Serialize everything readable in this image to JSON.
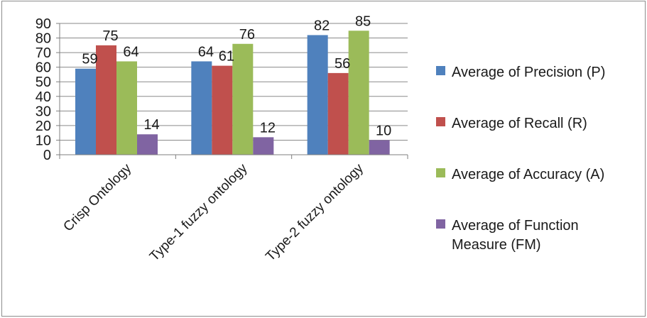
{
  "chart_data": {
    "type": "bar",
    "title": "",
    "xlabel": "",
    "ylabel": "",
    "categories": [
      "Crisp Ontology",
      "Type-1 fuzzy ontology",
      "Type-2 fuzzy ontology"
    ],
    "series": [
      {
        "name": "Average of Precision (P)",
        "legend_lines": [
          "Average of Precision (P)"
        ],
        "values": [
          59,
          64,
          82
        ],
        "color": "#4f81bd"
      },
      {
        "name": "Average of Recall (R)",
        "legend_lines": [
          "Average of Recall (R)"
        ],
        "values": [
          75,
          61,
          56
        ],
        "color": "#c0504d"
      },
      {
        "name": "Average of Accuracy (A)",
        "legend_lines": [
          "Average of Accuracy (A)"
        ],
        "values": [
          64,
          76,
          85
        ],
        "color": "#9bbb59"
      },
      {
        "name": "Average of Function Measure (FM)",
        "legend_lines": [
          "Average of Function",
          "Measure (FM)"
        ],
        "values": [
          14,
          12,
          10
        ],
        "color": "#8064a2"
      }
    ],
    "data_labels": [
      [
        "59",
        "64",
        "82"
      ],
      [
        "75",
        "61",
        "56"
      ],
      [
        "64",
        "76",
        "85"
      ],
      [
        "14",
        "12",
        "10"
      ]
    ],
    "ylim": [
      0,
      90
    ],
    "yticks": [
      0,
      10,
      20,
      30,
      40,
      50,
      60,
      70,
      80,
      90
    ],
    "grid": true,
    "legend_position": "right"
  }
}
